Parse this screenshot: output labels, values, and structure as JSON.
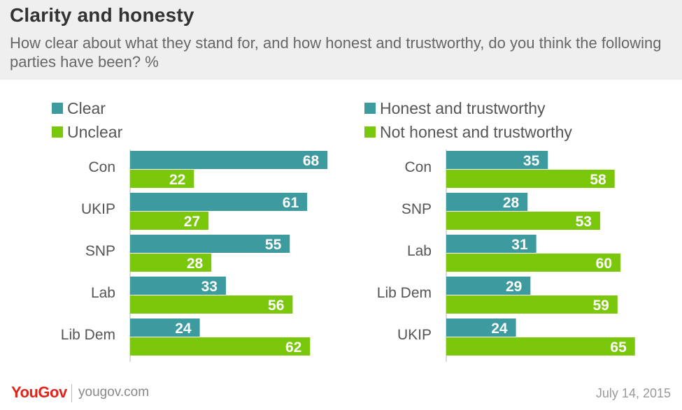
{
  "title": "Clarity and honesty",
  "subtitle": "How clear about what they stand for, and how honest and trustworthy, do you think the following parties have been?  %",
  "footer": {
    "logo": "YouGov",
    "site": "yougov.com",
    "date": "July 14, 2015"
  },
  "colors": {
    "teal": "#3d9ba0",
    "green": "#7ac70c",
    "header_bg": "#efefef"
  },
  "chart_data": [
    {
      "type": "bar",
      "orientation": "horizontal",
      "categories": [
        "Con",
        "UKIP",
        "SNP",
        "Lab",
        "Lib Dem"
      ],
      "series": [
        {
          "name": "Clear",
          "values": [
            68,
            61,
            55,
            33,
            24
          ],
          "color": "#3d9ba0"
        },
        {
          "name": "Unclear",
          "values": [
            22,
            27,
            28,
            56,
            62
          ],
          "color": "#7ac70c"
        }
      ],
      "legend": "top-left",
      "grid": false
    },
    {
      "type": "bar",
      "orientation": "horizontal",
      "categories": [
        "Con",
        "SNP",
        "Lab",
        "Lib Dem",
        "UKIP"
      ],
      "series": [
        {
          "name": "Honest and trustworthy",
          "values": [
            35,
            28,
            31,
            29,
            24
          ],
          "color": "#3d9ba0"
        },
        {
          "name": "Not honest and trustworthy",
          "values": [
            58,
            53,
            60,
            59,
            65
          ],
          "color": "#7ac70c"
        }
      ],
      "legend": "top-left",
      "grid": false
    }
  ]
}
